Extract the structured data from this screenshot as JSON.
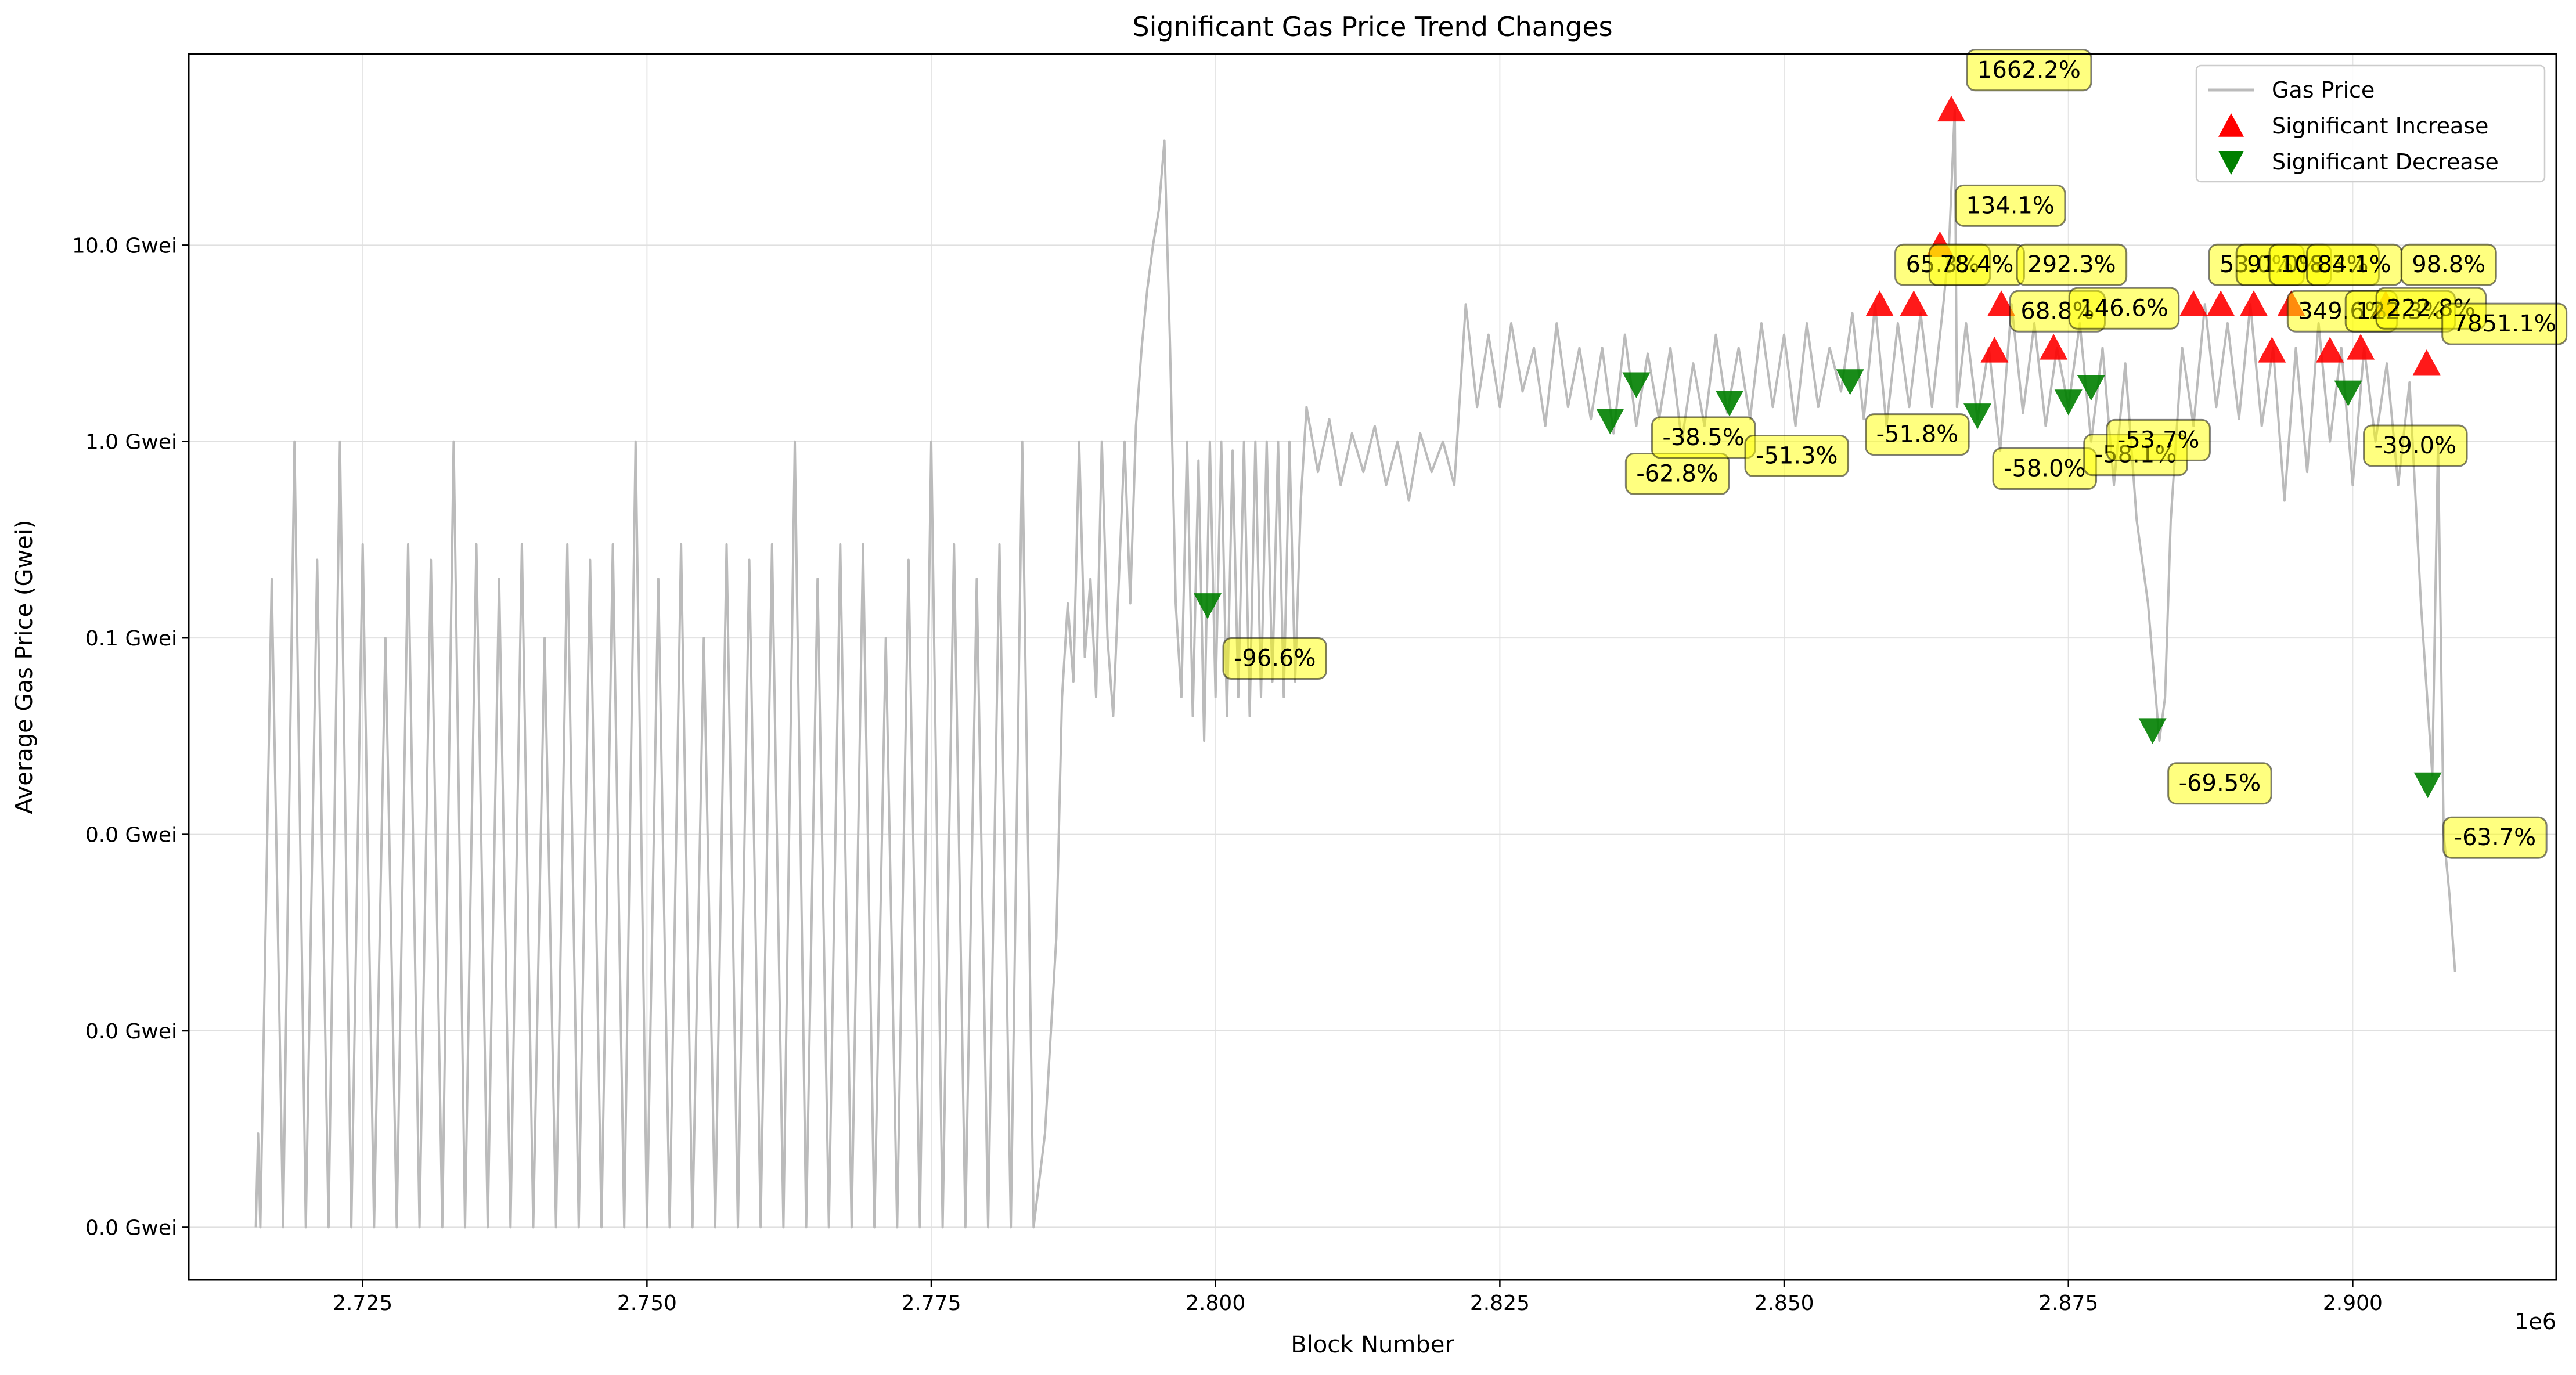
{
  "chart_data": {
    "type": "line",
    "title": "Significant Gas Price Trend Changes",
    "x_label": "Block Number",
    "y_label": "Average Gas Price (Gwei)",
    "x_offset_label": "1e6",
    "y_scale": "log",
    "grid": true,
    "legend_position": "upper right",
    "xlim": [
      2709700,
      2917900
    ],
    "ylim": [
      5.4e-05,
      94
    ],
    "xticks": [
      {
        "value": 2725000,
        "label": "2.725"
      },
      {
        "value": 2750000,
        "label": "2.750"
      },
      {
        "value": 2775000,
        "label": "2.775"
      },
      {
        "value": 2800000,
        "label": "2.800"
      },
      {
        "value": 2825000,
        "label": "2.825"
      },
      {
        "value": 2850000,
        "label": "2.850"
      },
      {
        "value": 2875000,
        "label": "2.875"
      },
      {
        "value": 2900000,
        "label": "2.900"
      }
    ],
    "yticks": [
      {
        "value": 0.0001,
        "label": "0.0 Gwei"
      },
      {
        "value": 0.001,
        "label": "0.0 Gwei"
      },
      {
        "value": 0.01,
        "label": "0.0 Gwei"
      },
      {
        "value": 0.1,
        "label": "0.1 Gwei"
      },
      {
        "value": 1,
        "label": "1.0 Gwei"
      },
      {
        "value": 10,
        "label": "10.0 Gwei"
      }
    ],
    "series": [
      {
        "name": "Gas Price",
        "type": "line",
        "color": "#bbbbbb",
        "x": [
          2715600,
          2715800,
          2716000,
          2717000,
          2718000,
          2719000,
          2720000,
          2721000,
          2722000,
          2723000,
          2724000,
          2725000,
          2726000,
          2727000,
          2728000,
          2729000,
          2730000,
          2731000,
          2732000,
          2733000,
          2734000,
          2735000,
          2736000,
          2737000,
          2738000,
          2739000,
          2740000,
          2741000,
          2742000,
          2743000,
          2744000,
          2745000,
          2746000,
          2747000,
          2748000,
          2749000,
          2750000,
          2751000,
          2752000,
          2753000,
          2754000,
          2755000,
          2756000,
          2757000,
          2758000,
          2759000,
          2760000,
          2761000,
          2762000,
          2763000,
          2764000,
          2765000,
          2766000,
          2767000,
          2768000,
          2769000,
          2770000,
          2771000,
          2772000,
          2773000,
          2774000,
          2775000,
          2776000,
          2777000,
          2778000,
          2779000,
          2780000,
          2781000,
          2782000,
          2783000,
          2784000,
          2785000,
          2786000,
          2786500,
          2787000,
          2787500,
          2788000,
          2788500,
          2789000,
          2789500,
          2790000,
          2790500,
          2791000,
          2791500,
          2792000,
          2792500,
          2793000,
          2793500,
          2794000,
          2794500,
          2795000,
          2795500,
          2796000,
          2796500,
          2797000,
          2797500,
          2798000,
          2798500,
          2799000,
          2799500,
          2800000,
          2800500,
          2801000,
          2801500,
          2802000,
          2802500,
          2803000,
          2803500,
          2804000,
          2804500,
          2805000,
          2805500,
          2806000,
          2806500,
          2807000,
          2807500,
          2808000,
          2809000,
          2810000,
          2811000,
          2812000,
          2813000,
          2814000,
          2815000,
          2816000,
          2817000,
          2818000,
          2819000,
          2820000,
          2821000,
          2822000,
          2823000,
          2824000,
          2825000,
          2826000,
          2827000,
          2828000,
          2829000,
          2830000,
          2831000,
          2832000,
          2833000,
          2834000,
          2835000,
          2836000,
          2837000,
          2838000,
          2839000,
          2840000,
          2841000,
          2842000,
          2843000,
          2844000,
          2845000,
          2846000,
          2847000,
          2848000,
          2849000,
          2850000,
          2851000,
          2852000,
          2853000,
          2854000,
          2855000,
          2856000,
          2857000,
          2858000,
          2859000,
          2860000,
          2861000,
          2862000,
          2863000,
          2864000,
          2864500,
          2865000,
          2865200,
          2866000,
          2867000,
          2868000,
          2869000,
          2870000,
          2871000,
          2872000,
          2873000,
          2874000,
          2875000,
          2876000,
          2877000,
          2878000,
          2879000,
          2880000,
          2881000,
          2882000,
          2883000,
          2883500,
          2884000,
          2885000,
          2886000,
          2887000,
          2888000,
          2889000,
          2890000,
          2891000,
          2892000,
          2893000,
          2894000,
          2895000,
          2896000,
          2897000,
          2898000,
          2899000,
          2900000,
          2901000,
          2902000,
          2903000,
          2904000,
          2905000,
          2906000,
          2907000,
          2907500,
          2908000,
          2908500,
          2909000
        ],
        "values": [
          0.0001,
          0.0003,
          0.0001,
          0.2,
          0.0001,
          1,
          0.0001,
          0.25,
          0.0001,
          1,
          0.0001,
          0.3,
          0.0001,
          0.1,
          0.0001,
          0.3,
          0.0001,
          0.25,
          0.0001,
          1,
          0.0001,
          0.3,
          0.0001,
          0.2,
          0.0001,
          0.3,
          0.0001,
          0.1,
          0.0001,
          0.3,
          0.0001,
          0.25,
          0.0001,
          0.3,
          0.0001,
          1,
          0.0001,
          0.2,
          0.0001,
          0.3,
          0.0001,
          0.1,
          0.0001,
          0.3,
          0.0001,
          0.25,
          0.0001,
          0.3,
          0.0001,
          1,
          0.0001,
          0.2,
          0.0001,
          0.3,
          0.0001,
          0.3,
          0.0001,
          0.1,
          0.0001,
          0.25,
          0.0001,
          1,
          0.0001,
          0.3,
          0.0001,
          0.2,
          0.0001,
          0.3,
          0.0001,
          1,
          0.0001,
          0.0003,
          0.003,
          0.05,
          0.15,
          0.06,
          1,
          0.08,
          0.2,
          0.05,
          1,
          0.1,
          0.04,
          0.2,
          1,
          0.15,
          1.2,
          3,
          6,
          10,
          15,
          34,
          3,
          0.15,
          0.05,
          1,
          0.04,
          0.8,
          0.03,
          1,
          0.05,
          1,
          0.04,
          0.9,
          0.05,
          1,
          0.04,
          1,
          0.05,
          1,
          0.06,
          1,
          0.05,
          1,
          0.06,
          0.5,
          1.5,
          0.7,
          1.3,
          0.6,
          1.1,
          0.7,
          1.2,
          0.6,
          1,
          0.5,
          1.1,
          0.7,
          1,
          0.6,
          5,
          1.5,
          3.5,
          1.5,
          4,
          1.8,
          3,
          1.2,
          4,
          1.5,
          3,
          1.3,
          3,
          1.1,
          3.5,
          1.2,
          2.8,
          1.3,
          3,
          1,
          2.5,
          1.2,
          3.5,
          1.4,
          3,
          1.3,
          4,
          1.5,
          3.5,
          1.2,
          4,
          1.5,
          3,
          1.8,
          4.5,
          1.3,
          5,
          1.2,
          4,
          1.5,
          4.5,
          1.5,
          5,
          10,
          49,
          1.5,
          4,
          1.3,
          3,
          0.9,
          5,
          1.4,
          4,
          1.2,
          3,
          1.5,
          4,
          1,
          3,
          0.6,
          2.5,
          0.4,
          0.15,
          0.03,
          0.05,
          0.4,
          3,
          1.2,
          5,
          1.5,
          4,
          1.3,
          5,
          1.2,
          3,
          0.5,
          3,
          0.7,
          4,
          1,
          3,
          0.6,
          3,
          1,
          2.5,
          0.6,
          2,
          0.15,
          0.02,
          1,
          0.01,
          0.005,
          0.002
        ]
      },
      {
        "name": "Significant Increase",
        "type": "scatter",
        "marker": "triangle-up",
        "color": "#ff0000",
        "x": [
          2858400,
          2861400,
          2863700,
          2864700,
          2868500,
          2869100,
          2873700,
          2886000,
          2888400,
          2891300,
          2892900,
          2894600,
          2898000,
          2900700,
          2902900,
          2906500
        ],
        "values": [
          5.0,
          5.0,
          10,
          49,
          2.9,
          5.0,
          3.0,
          5.0,
          5.0,
          5.0,
          2.9,
          5.0,
          2.9,
          3.0,
          5.0,
          2.5
        ],
        "labels": [
          "65.3%",
          "78.4%",
          "134.1%",
          "1662.2%",
          "68.8%",
          "292.3%",
          "146.6%",
          "53.0%",
          "91.0%",
          "108.3%",
          "349.6%",
          "84.1%",
          "122.3%",
          "222.8%",
          "98.8%",
          "7851.1%"
        ]
      },
      {
        "name": "Significant Decrease",
        "type": "scatter",
        "marker": "triangle-down",
        "color": "#008000",
        "x": [
          2799300,
          2834700,
          2837000,
          2845200,
          2855800,
          2867000,
          2875000,
          2877000,
          2882400,
          2899600,
          2906600
        ],
        "values": [
          0.147,
          1.28,
          1.96,
          1.58,
          2.03,
          1.36,
          1.6,
          1.9,
          0.034,
          1.78,
          0.018
        ],
        "labels": [
          "-96.6%",
          "-62.8%",
          "-38.5%",
          "-51.3%",
          "-51.8%",
          "-58.0%",
          "-58.1%",
          "-53.7%",
          "-69.5%",
          "-39.0%",
          "-63.7%"
        ]
      }
    ]
  }
}
